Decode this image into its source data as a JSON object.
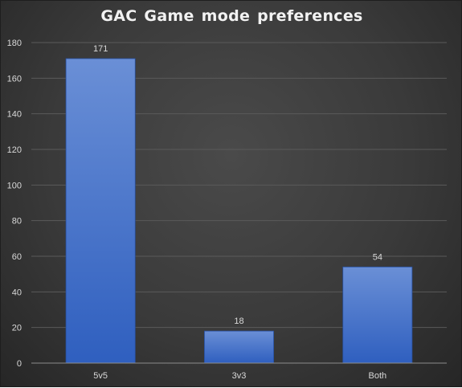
{
  "chart_data": {
    "type": "bar",
    "title": "GAC Game mode preferences",
    "categories": [
      "5v5",
      "3v3",
      "Both"
    ],
    "values": [
      171,
      18,
      54
    ],
    "ylim": [
      0,
      180
    ],
    "yticks": [
      0,
      20,
      40,
      60,
      80,
      100,
      120,
      140,
      160,
      180
    ],
    "xlabel": "",
    "ylabel": "",
    "grid": true,
    "legend": "none",
    "data_labels": true,
    "colors": {
      "background": "#3a3a3a",
      "bar_top": "#6a8fd6",
      "bar_bottom": "#2f5fbf",
      "bar_edge": "#274f9f",
      "gridline": "#5a5a5a",
      "axis": "#8c8c8c",
      "text": "#d9d9d9",
      "title": "#f2f2f2"
    }
  }
}
